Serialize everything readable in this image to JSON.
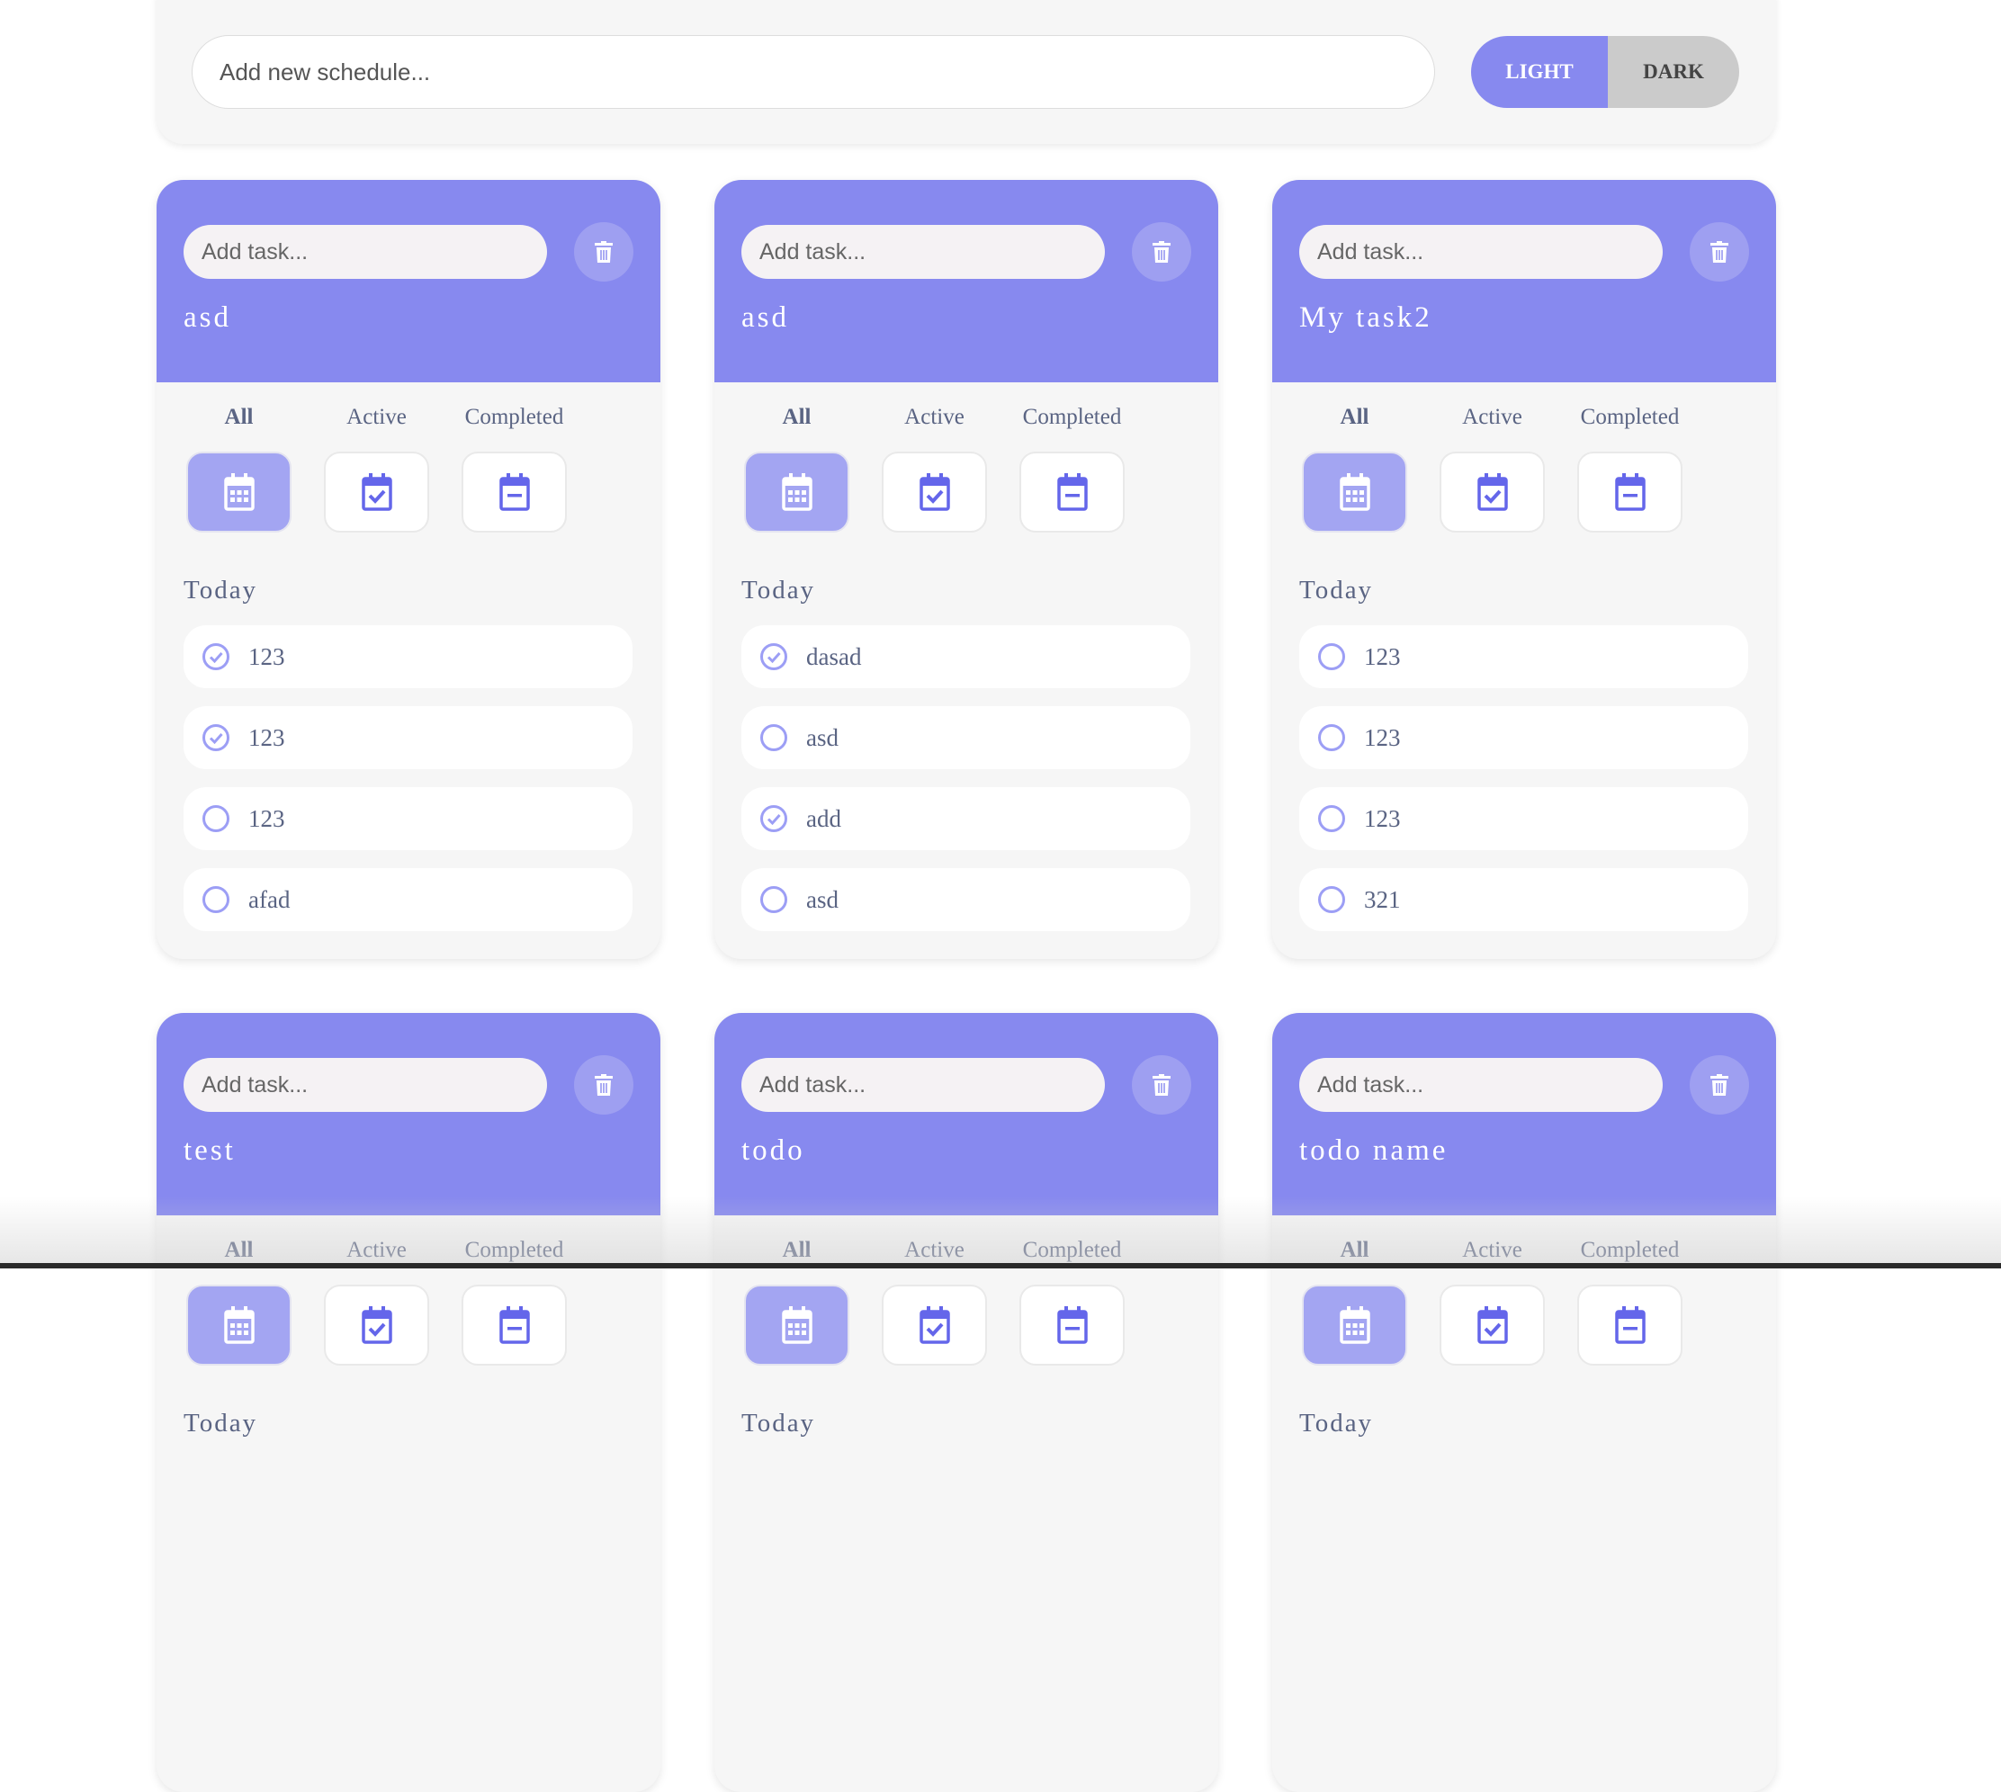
{
  "header": {
    "schedule_placeholder": "Add new schedule...",
    "light_label": "LIGHT",
    "dark_label": "DARK",
    "theme": "light"
  },
  "colors": {
    "accent": "#8789ef",
    "accent_light": "#a3a5f2",
    "icon": "#6466ea",
    "text": "#5a6483"
  },
  "filters": [
    "All",
    "Active",
    "Completed"
  ],
  "task_placeholder": "Add task...",
  "today_label": "Today",
  "cards": [
    {
      "title": "asd",
      "active_filter": "All",
      "tasks": [
        {
          "text": "123",
          "done": true
        },
        {
          "text": "123",
          "done": true
        },
        {
          "text": "123",
          "done": false
        },
        {
          "text": "afad",
          "done": false
        }
      ]
    },
    {
      "title": "asd",
      "active_filter": "All",
      "tasks": [
        {
          "text": "dasad",
          "done": true
        },
        {
          "text": "asd",
          "done": false
        },
        {
          "text": "add",
          "done": true
        },
        {
          "text": "asd",
          "done": false
        }
      ]
    },
    {
      "title": "My task2",
      "active_filter": "All",
      "tasks": [
        {
          "text": "123",
          "done": false
        },
        {
          "text": "123",
          "done": false
        },
        {
          "text": "123",
          "done": false
        },
        {
          "text": "321",
          "done": false
        }
      ]
    },
    {
      "title": "test",
      "active_filter": "All",
      "tasks": []
    },
    {
      "title": "todo",
      "active_filter": "All",
      "tasks": []
    },
    {
      "title": "todo name",
      "active_filter": "All",
      "tasks": []
    }
  ]
}
